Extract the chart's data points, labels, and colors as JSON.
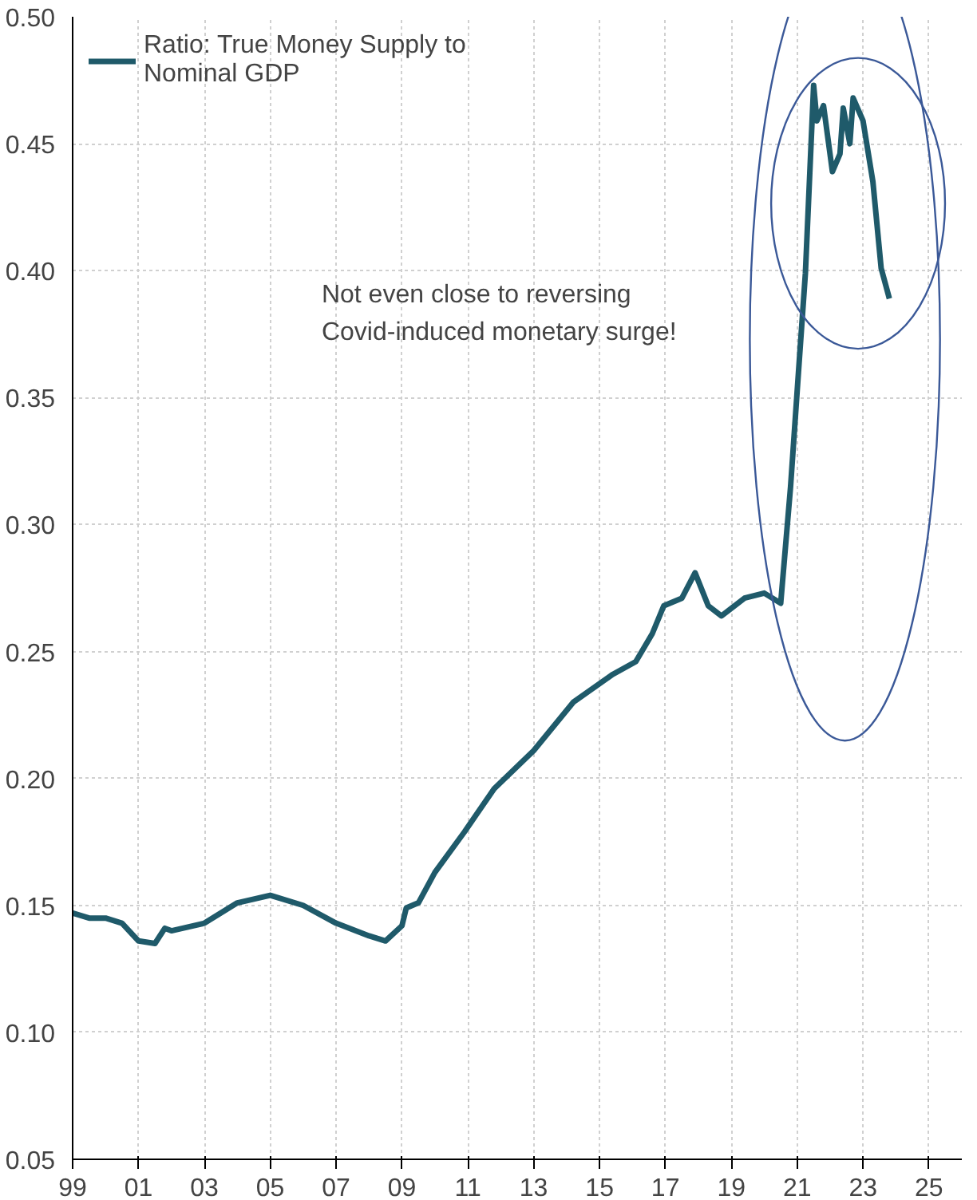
{
  "chart_data": {
    "type": "line",
    "annotations": [
      "Not even close to reversing\nCovid-induced monetary surge!"
    ],
    "xlim": [
      1999,
      2026
    ],
    "ylim": [
      0.05,
      0.5
    ],
    "xticks": [
      {
        "value": 1999,
        "label": "99"
      },
      {
        "value": 2001,
        "label": "01"
      },
      {
        "value": 2003,
        "label": "03"
      },
      {
        "value": 2005,
        "label": "05"
      },
      {
        "value": 2007,
        "label": "07"
      },
      {
        "value": 2009,
        "label": "09"
      },
      {
        "value": 2011,
        "label": "11"
      },
      {
        "value": 2013,
        "label": "13"
      },
      {
        "value": 2015,
        "label": "15"
      },
      {
        "value": 2017,
        "label": "17"
      },
      {
        "value": 2019,
        "label": "19"
      },
      {
        "value": 2021,
        "label": "21"
      },
      {
        "value": 2023,
        "label": "23"
      },
      {
        "value": 2025,
        "label": "25"
      }
    ],
    "yticks": [
      {
        "value": 0.05,
        "label": "0.05"
      },
      {
        "value": 0.1,
        "label": "0.10"
      },
      {
        "value": 0.15,
        "label": "0.15"
      },
      {
        "value": 0.2,
        "label": "0.20"
      },
      {
        "value": 0.25,
        "label": "0.25"
      },
      {
        "value": 0.3,
        "label": "0.30"
      },
      {
        "value": 0.35,
        "label": "0.35"
      },
      {
        "value": 0.4,
        "label": "0.40"
      },
      {
        "value": 0.45,
        "label": "0.45"
      },
      {
        "value": 0.5,
        "label": "0.50"
      }
    ],
    "grid": true,
    "legend": "top left",
    "marker": "none",
    "line_style": "solid",
    "series": [
      {
        "name": "Ratio: True Money Supply to\nNominal GDP",
        "color": "#1f5a6a",
        "x": [
          1999.0,
          1999.5,
          2000.0,
          2000.5,
          2001.0,
          2001.5,
          2001.8,
          2002.0,
          2003.0,
          2004.0,
          2005.0,
          2006.0,
          2007.0,
          2008.0,
          2008.5,
          2009.0,
          2009.13,
          2009.5,
          2010.0,
          2010.9,
          2011.8,
          2013.0,
          2014.2,
          2015.4,
          2016.1,
          2016.6,
          2016.95,
          2017.5,
          2017.9,
          2018.3,
          2018.7,
          2019.4,
          2020.0,
          2020.5,
          2020.8,
          2021.05,
          2021.25,
          2021.5,
          2021.6,
          2021.8,
          2022.07,
          2022.3,
          2022.4,
          2022.6,
          2022.7,
          2023.0,
          2023.3,
          2023.55,
          2023.8
        ],
        "values": [
          0.147,
          0.145,
          0.145,
          0.143,
          0.136,
          0.135,
          0.141,
          0.14,
          0.143,
          0.151,
          0.154,
          0.15,
          0.143,
          0.138,
          0.136,
          0.142,
          0.149,
          0.151,
          0.163,
          0.179,
          0.196,
          0.211,
          0.23,
          0.241,
          0.246,
          0.257,
          0.268,
          0.271,
          0.281,
          0.268,
          0.264,
          0.271,
          0.273,
          0.269,
          0.315,
          0.362,
          0.399,
          0.473,
          0.459,
          0.465,
          0.439,
          0.446,
          0.464,
          0.45,
          0.468,
          0.459,
          0.435,
          0.401,
          0.389
        ]
      }
    ]
  }
}
